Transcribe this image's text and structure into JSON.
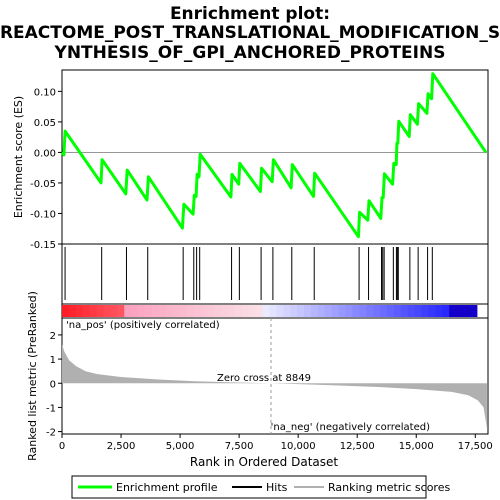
{
  "title_line1": "Enrichment plot:",
  "title_line2": "REACTOME_POST_TRANSLATIONAL_MODIFICATION_S",
  "title_line3": "YNTHESIS_OF_GPI_ANCHORED_PROTEINS",
  "colors": {
    "enrichment_line": "#00ff00",
    "hits": "#000000",
    "metric_fill": "#b0b0b0",
    "pos_text": "#cc0000",
    "neg_text": "#0000cc",
    "zero_line": "#999999"
  },
  "chart_data": {
    "type": "line",
    "total_genes": 17993,
    "top_panel": {
      "ylabel": "Enrichment score (ES)",
      "ylim": [
        -0.15,
        0.135
      ],
      "yticks": [
        -0.15,
        -0.1,
        -0.05,
        0.0,
        0.05,
        0.1
      ],
      "ytick_labels": [
        "-0.15",
        "-0.10",
        "-0.05",
        "0.00",
        "0.05",
        "0.10"
      ],
      "es_points": [
        [
          0,
          0.0
        ],
        [
          80,
          -0.004
        ],
        [
          130,
          0.035
        ],
        [
          1650,
          -0.05
        ],
        [
          1700,
          -0.012
        ],
        [
          2700,
          -0.068
        ],
        [
          2760,
          -0.029
        ],
        [
          3600,
          -0.078
        ],
        [
          3660,
          -0.04
        ],
        [
          5100,
          -0.124
        ],
        [
          5160,
          -0.085
        ],
        [
          5550,
          -0.101
        ],
        [
          5600,
          -0.07
        ],
        [
          5680,
          -0.072
        ],
        [
          5720,
          -0.036
        ],
        [
          5800,
          -0.04
        ],
        [
          5850,
          -0.003
        ],
        [
          7150,
          -0.073
        ],
        [
          7200,
          -0.036
        ],
        [
          7480,
          -0.052
        ],
        [
          7530,
          -0.018
        ],
        [
          8400,
          -0.064
        ],
        [
          8450,
          -0.026
        ],
        [
          8900,
          -0.048
        ],
        [
          8950,
          -0.012
        ],
        [
          9700,
          -0.058
        ],
        [
          9750,
          -0.02
        ],
        [
          10650,
          -0.072
        ],
        [
          10700,
          -0.034
        ],
        [
          12550,
          -0.138
        ],
        [
          12600,
          -0.098
        ],
        [
          12950,
          -0.111
        ],
        [
          13000,
          -0.079
        ],
        [
          13500,
          -0.108
        ],
        [
          13550,
          -0.074
        ],
        [
          13600,
          -0.074
        ],
        [
          13650,
          -0.035
        ],
        [
          14000,
          -0.052
        ],
        [
          14050,
          -0.018
        ],
        [
          14150,
          -0.02
        ],
        [
          14180,
          0.015
        ],
        [
          14220,
          0.015
        ],
        [
          14260,
          0.051
        ],
        [
          14700,
          0.026
        ],
        [
          14750,
          0.062
        ],
        [
          15050,
          0.046
        ],
        [
          15100,
          0.08
        ],
        [
          15450,
          0.064
        ],
        [
          15500,
          0.096
        ],
        [
          15650,
          0.088
        ],
        [
          15700,
          0.129
        ],
        [
          17950,
          0.0
        ]
      ]
    },
    "hits": [
      130,
      1680,
      2730,
      3630,
      5130,
      5580,
      5700,
      5830,
      7180,
      7510,
      8430,
      8930,
      9730,
      10680,
      12580,
      12980,
      13530,
      13580,
      13640,
      14030,
      14160,
      14200,
      14240,
      14730,
      15080,
      15480,
      15680
    ],
    "bottom_panel": {
      "ylabel": "Ranked list metric (PreRanked)",
      "xlabel": "Rank in Ordered Dataset",
      "ylim": [
        -2.1,
        2.7
      ],
      "yticks": [
        -2,
        -1,
        0,
        1,
        2
      ],
      "ytick_labels": [
        "-2",
        "-1",
        "0",
        "1",
        "2"
      ],
      "xticks": [
        0,
        2500,
        5000,
        7500,
        10000,
        12500,
        15000,
        17500
      ],
      "xtick_labels": [
        "0",
        "2,500",
        "5,000",
        "7,500",
        "10,000",
        "12,500",
        "15,000",
        "17,500"
      ],
      "metric_curve": [
        [
          0,
          1.6
        ],
        [
          100,
          1.3
        ],
        [
          300,
          0.95
        ],
        [
          600,
          0.7
        ],
        [
          1000,
          0.5
        ],
        [
          1500,
          0.38
        ],
        [
          2500,
          0.26
        ],
        [
          4000,
          0.16
        ],
        [
          5500,
          0.09
        ],
        [
          7000,
          0.04
        ],
        [
          8849,
          0.0
        ],
        [
          10500,
          -0.05
        ],
        [
          12000,
          -0.1
        ],
        [
          13500,
          -0.16
        ],
        [
          15000,
          -0.24
        ],
        [
          16500,
          -0.36
        ],
        [
          17200,
          -0.5
        ],
        [
          17600,
          -0.7
        ],
        [
          17850,
          -1.0
        ],
        [
          17993,
          -1.85
        ]
      ],
      "zero_cross_label": "Zero cross at 8849",
      "zero_cross_rank": 8849,
      "pos_label": "'na_pos' (positively correlated)",
      "neg_label": "'na_neg' (negatively correlated)"
    },
    "legend": [
      {
        "label": "Enrichment profile",
        "color": "#00ff00"
      },
      {
        "label": "Hits",
        "color": "#000000"
      },
      {
        "label": "Ranking metric scores",
        "color": "#b0b0b0"
      }
    ]
  }
}
